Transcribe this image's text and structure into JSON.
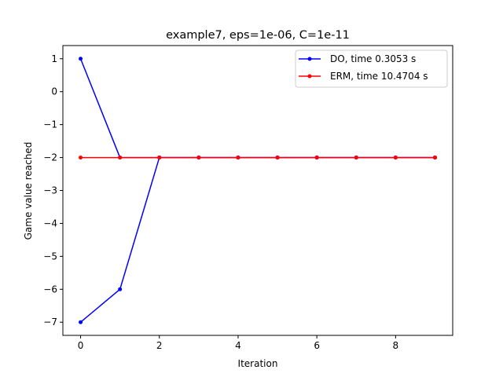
{
  "chart_data": {
    "type": "line",
    "title": "example7, eps=1e-06, C=1e-11",
    "xlabel": "Iteration",
    "ylabel": "Game value reached",
    "xlim": [
      -0.45,
      9.45
    ],
    "ylim": [
      -7.4,
      1.4
    ],
    "xticks": [
      0,
      2,
      4,
      6,
      8
    ],
    "yticks": [
      1,
      0,
      -1,
      -2,
      -3,
      -4,
      -5,
      -6,
      -7
    ],
    "xtick_labels": [
      "0",
      "2",
      "4",
      "6",
      "8"
    ],
    "ytick_labels": [
      "1",
      "0",
      "−1",
      "−2",
      "−3",
      "−4",
      "−5",
      "−6",
      "−7"
    ],
    "grid": false,
    "legend_position": "top-right",
    "x": [
      0,
      1,
      2,
      3,
      4,
      5,
      6,
      7,
      8,
      9
    ],
    "series": [
      {
        "name": "DO, time 0.3053 s",
        "color": "#0000ff",
        "y_upper": [
          1,
          -2,
          -2,
          -2,
          -2,
          -2,
          -2,
          -2,
          -2,
          -2
        ],
        "y_lower": [
          -7,
          -6,
          -2,
          -2,
          -2,
          -2,
          -2,
          -2,
          -2,
          -2
        ]
      },
      {
        "name": "ERM, time 10.4704 s",
        "color": "#ff0000",
        "y": [
          -2,
          -2,
          -2,
          -2,
          -2,
          -2,
          -2,
          -2,
          -2,
          -2
        ]
      }
    ]
  }
}
